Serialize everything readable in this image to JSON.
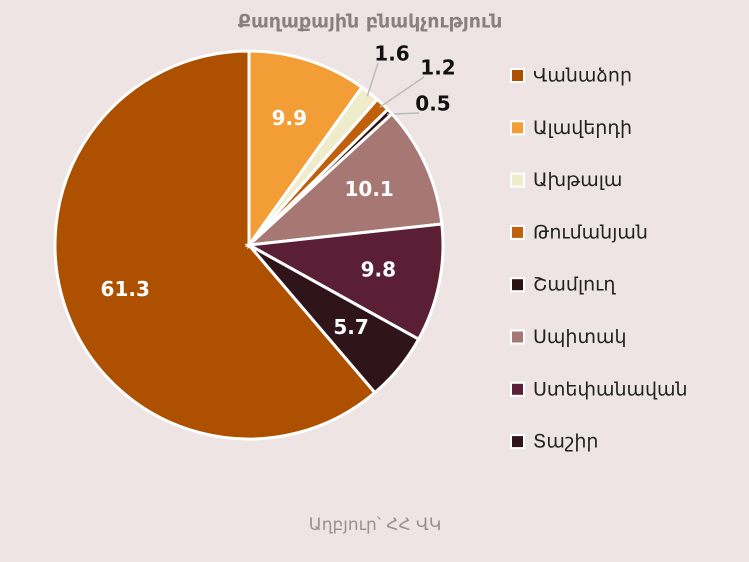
{
  "chart_data": {
    "type": "pie",
    "title": "Քաղաքային բնակչություն",
    "categories": [
      "Վանաձոր",
      "Ալավերդի",
      "Ախթալա",
      "Թումանյան",
      "Շամլուղ",
      "Սպիտակ",
      "Ստեփանավան",
      "Տաշիր"
    ],
    "values": [
      61.3,
      9.9,
      1.6,
      1.2,
      0.5,
      10.1,
      9.8,
      5.7
    ],
    "colors": [
      "#ad5100",
      "#f29d35",
      "#efeccb",
      "#c0600c",
      "#2b1212",
      "#a77873",
      "#5b1f35",
      "#2f151a"
    ],
    "source": "Աղբյուր՝ ՀՀ ՎԿ"
  }
}
